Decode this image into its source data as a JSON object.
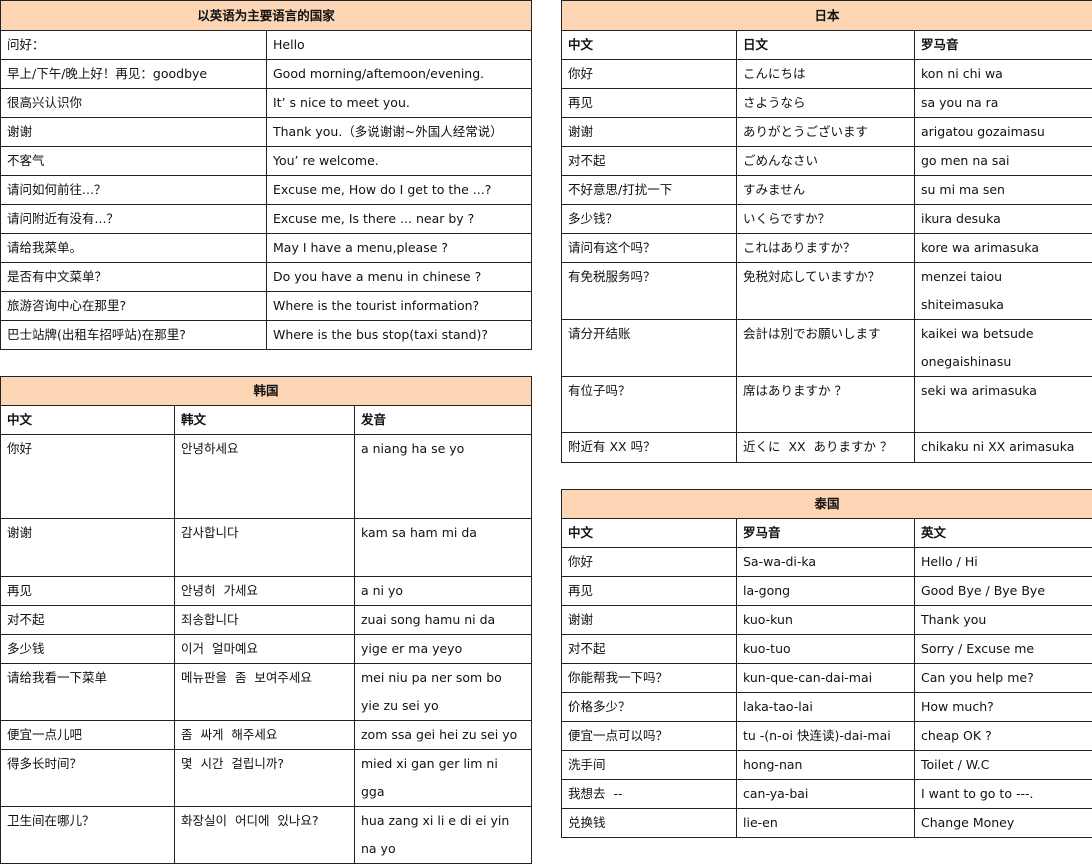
{
  "header_color": "#fcd5b4",
  "english": {
    "title": "以英语为主要语言的国家",
    "rows": [
      [
        "问好：",
        "Hello"
      ],
      [
        "早上/下午/晚上好！再见：goodbye",
        "Good morning/aftemoon/evening."
      ],
      [
        "很高兴认识你",
        "It’ s nice to meet you."
      ],
      [
        "谢谢",
        "Thank you.（多说谢谢~外国人经常说）"
      ],
      [
        "不客气",
        "You’ re welcome."
      ],
      [
        "请问如何前往...？",
        "Excuse me, How do I get to the ...?"
      ],
      [
        "请问附近有没有...？",
        "Excuse me, Is there ... near by ?"
      ],
      [
        "请给我菜单。",
        "May I have a menu,please ?"
      ],
      [
        "是否有中文菜单？",
        "Do you have a menu in chinese ?"
      ],
      [
        "旅游咨询中心在那里?",
        "Where is the tourist information?"
      ],
      [
        "巴士站牌(出租车招呼站)在那里?",
        "Where is the bus stop(taxi stand)?"
      ]
    ]
  },
  "japan": {
    "title": "日本",
    "columns": [
      "中文",
      "日文",
      "罗马音"
    ],
    "rows": [
      [
        "你好",
        "こんにちは",
        "kon ni chi wa"
      ],
      [
        "再见",
        "さようなら",
        "sa you na ra"
      ],
      [
        "谢谢",
        "ありがとうございます",
        "arigatou gozaimasu"
      ],
      [
        "对不起",
        "ごめんなさい",
        "go men na sai"
      ],
      [
        "不好意思/打扰一下",
        "すみません",
        "su mi ma sen"
      ],
      [
        "多少钱？",
        "いくらですか？",
        "ikura desuka"
      ],
      [
        "请问有这个吗？",
        "これはありますか？",
        "kore wa arimasuka"
      ],
      [
        "有免税服务吗？",
        "免税対応していますか？",
        "menzei taiou\nshiteimasuka"
      ],
      [
        "请分开结账",
        "会計は別でお願いします",
        "kaikei wa betsude\nonegaishinasu"
      ],
      [
        "有位子吗？",
        "席はありますか ？",
        "seki wa arimasuka"
      ],
      [
        "附近有 XX 吗？",
        "近くに  XX  ありますか ？",
        "chikaku ni XX arimasuka"
      ]
    ]
  },
  "korea": {
    "title": "韩国",
    "columns": [
      "中文",
      "韩文",
      "发音"
    ],
    "rows": [
      [
        "你好",
        "안녕하세요",
        "a niang ha se yo"
      ],
      [
        "谢谢",
        "감사합니다",
        "kam sa ham mi da"
      ],
      [
        "再见",
        "안녕히  가세요",
        "a ni yo"
      ],
      [
        "对不起",
        "죄송합니다",
        "zuai song hamu ni da"
      ],
      [
        "多少钱",
        "이거  얼마예요",
        "yige er ma yeyo"
      ],
      [
        "请给我看一下菜单",
        "메뉴판을  좀  보여주세요",
        "mei niu pa ner som bo\nyie zu sei yo"
      ],
      [
        "便宜一点儿吧",
        "좀  싸게  해주세요",
        "zom ssa gei hei zu sei yo"
      ],
      [
        "得多长时间？",
        "몇  시간  걸립니까?",
        "mied xi gan ger lim ni\ngga"
      ],
      [
        "卫生间在哪儿？",
        "화장실이  어디에  있나요?",
        "hua zang xi li e di ei yin\nna yo"
      ]
    ]
  },
  "thailand": {
    "title": "泰国",
    "columns": [
      "中文",
      "罗马音",
      "英文"
    ],
    "rows": [
      [
        "你好",
        "Sa-wa-di-ka",
        "Hello / Hi"
      ],
      [
        "再见",
        "la-gong",
        "Good Bye / Bye Bye"
      ],
      [
        "谢谢",
        "kuo-kun",
        "Thank you"
      ],
      [
        "对不起",
        "kuo-tuo",
        "Sorry / Excuse me"
      ],
      [
        "你能帮我一下吗？",
        "kun-que-can-dai-mai",
        "Can you help me?"
      ],
      [
        "价格多少？",
        "laka-tao-lai",
        "How much?"
      ],
      [
        "便宜一点可以吗？",
        "tu -(n-oi 快连读)-dai-mai",
        "cheap OK ?"
      ],
      [
        "洗手间",
        "hong-nan",
        "Toilet / W.C"
      ],
      [
        "我想去  --",
        "can-ya-bai",
        "I want to go to ---."
      ],
      [
        "兑换钱",
        "lie-en",
        "Change Money"
      ]
    ]
  }
}
